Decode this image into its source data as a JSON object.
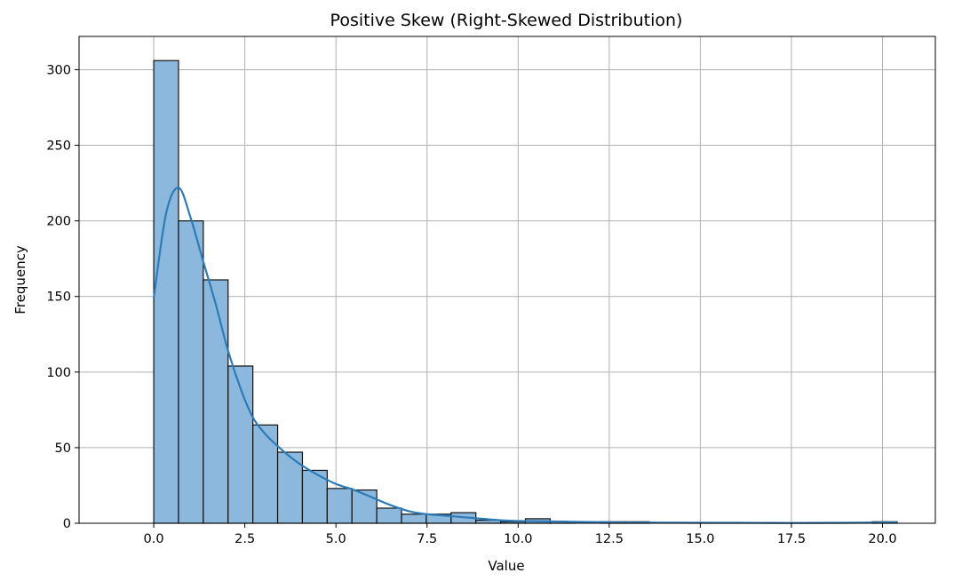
{
  "chart_data": {
    "type": "bar",
    "title": "Positive Skew (Right-Skewed Distribution)",
    "xlabel": "Value",
    "ylabel": "Frequency",
    "xlim": [
      -2.05,
      21.45
    ],
    "ylim": [
      0,
      322
    ],
    "grid": true,
    "x_ticks": [
      0,
      2.5,
      5,
      7.5,
      10,
      12.5,
      15,
      17.5,
      20
    ],
    "x_tick_labels": [
      "0.0",
      "2.5",
      "5.0",
      "7.5",
      "10.0",
      "12.5",
      "15.0",
      "17.5",
      "20.0"
    ],
    "y_ticks": [
      0,
      50,
      100,
      150,
      200,
      250,
      300
    ],
    "y_tick_labels": [
      "0",
      "50",
      "100",
      "150",
      "200",
      "250",
      "300"
    ],
    "bin_edges": [
      0.0,
      0.68,
      1.36,
      2.04,
      2.72,
      3.4,
      4.08,
      4.76,
      5.44,
      6.12,
      6.8,
      7.48,
      8.16,
      8.84,
      9.52,
      10.2,
      10.88,
      11.56,
      12.24,
      12.92,
      13.6,
      14.28,
      14.96,
      15.64,
      16.32,
      17.0,
      17.68,
      18.36,
      19.04,
      19.72,
      20.4
    ],
    "counts": [
      306,
      200,
      161,
      104,
      65,
      47,
      35,
      23,
      22,
      10,
      6,
      6,
      7,
      2,
      1,
      3,
      1,
      0,
      1,
      1,
      0,
      0,
      0,
      0,
      0,
      0,
      0,
      0,
      0,
      1
    ],
    "kde": {
      "x": [
        0.0,
        0.34,
        0.68,
        1.0,
        1.36,
        1.7,
        2.04,
        2.4,
        2.72,
        3.06,
        3.4,
        3.74,
        4.08,
        4.5,
        5.0,
        5.5,
        6.0,
        6.5,
        7.0,
        7.5,
        8.0,
        8.5,
        9.0,
        9.5,
        10.0,
        11.0,
        12.0,
        13.0,
        14.0,
        15.0,
        16.0,
        17.0,
        18.0,
        19.0,
        20.0,
        20.4
      ],
      "y": [
        149,
        205,
        222,
        203,
        173,
        145,
        114,
        88,
        70,
        59,
        51,
        44,
        38,
        32,
        26,
        22,
        17,
        12,
        8,
        6,
        5,
        4,
        3,
        2,
        1.5,
        1.2,
        0.8,
        0.5,
        0.4,
        0.3,
        0.3,
        0.2,
        0.2,
        0.3,
        0.5,
        0.6
      ]
    },
    "colors": {
      "bar_fill": "#8bb8dc",
      "bar_edge": "#111111",
      "kde_line": "#2d7bb8",
      "grid": "#b0b0b0",
      "axes": "#000000"
    }
  }
}
